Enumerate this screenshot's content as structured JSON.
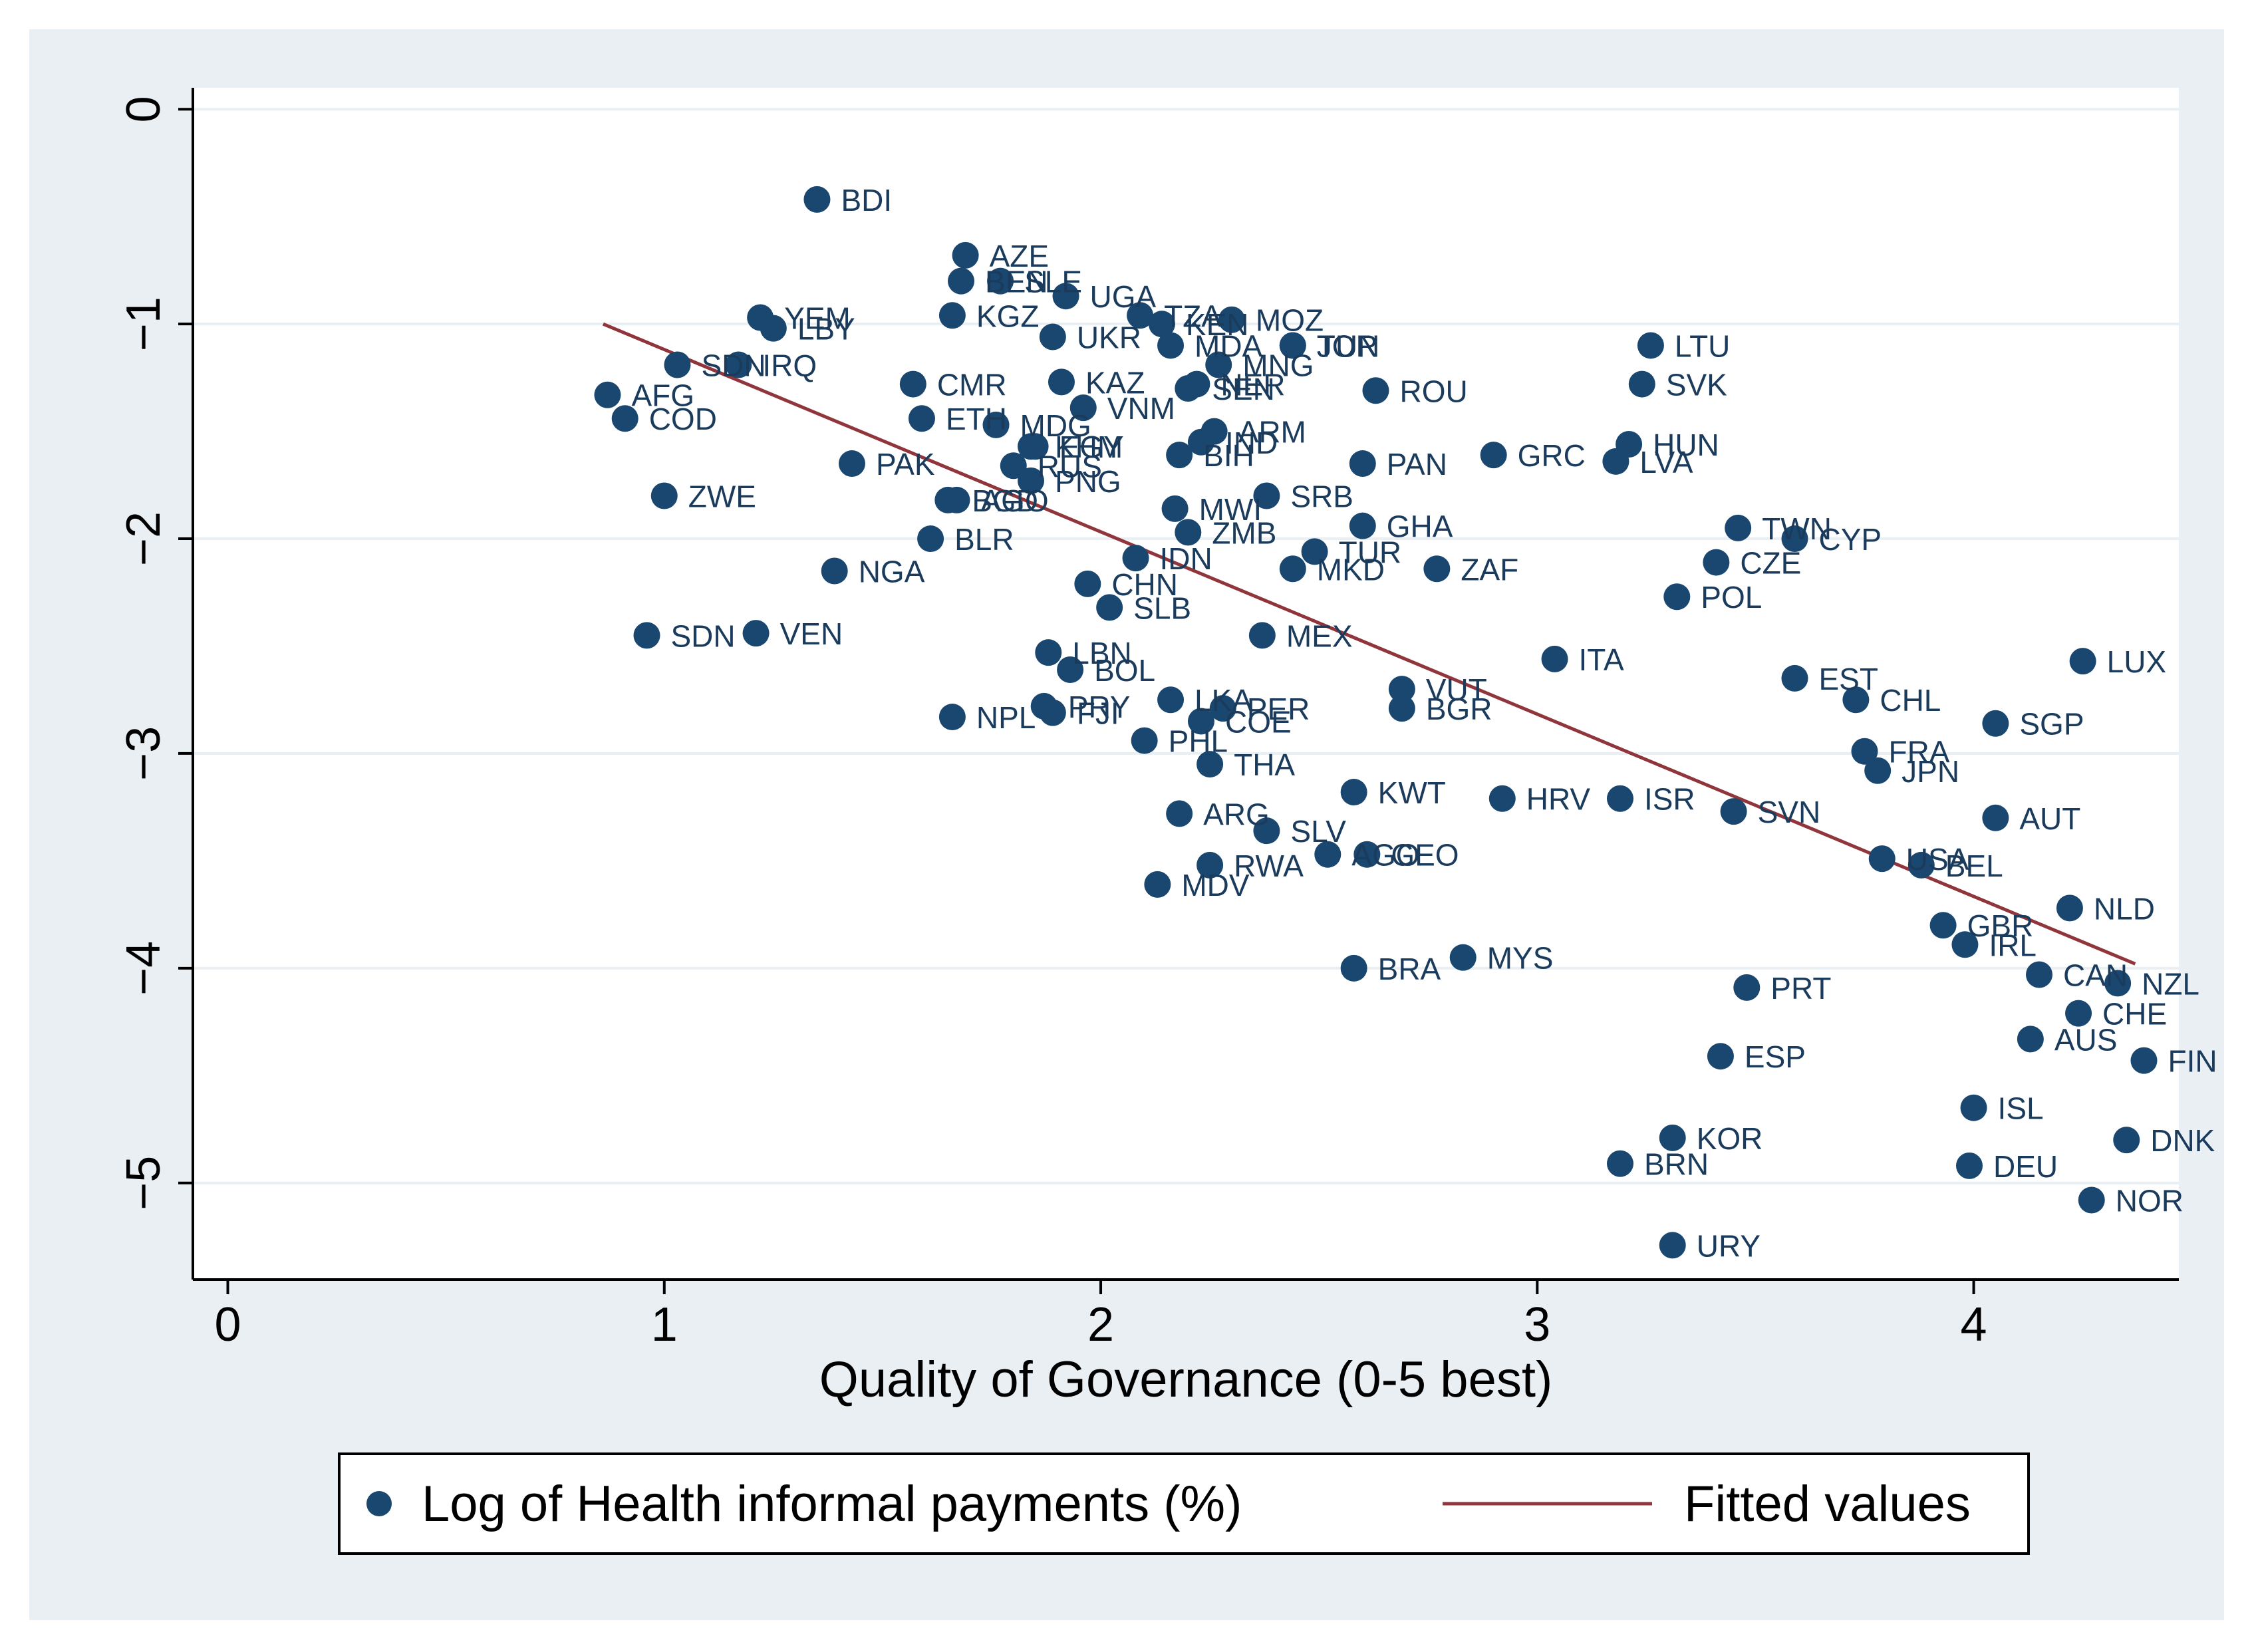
{
  "chart_data": {
    "type": "scatter",
    "xlabel": "Quality of Governance (0-5 best)",
    "ylabel": "",
    "xlim": [
      -0.08,
      4.47
    ],
    "ylim": [
      -5.45,
      0.1
    ],
    "xticks": [
      0,
      1,
      2,
      3,
      4
    ],
    "yticks": [
      0,
      -1,
      -2,
      -3,
      -4,
      -5
    ],
    "grid": true,
    "legend_position": "bottom",
    "colors": {
      "points": "#1a476f",
      "fit": "#90353b",
      "plot_bg": "#ffffff",
      "outer_bg": "#e9eff2",
      "grid": "#e9eff2"
    },
    "series": [
      {
        "name": "Log of Health informal payments (%)",
        "type": "scatter",
        "points": [
          {
            "label": "BDI",
            "x": 1.35,
            "y": -0.42
          },
          {
            "label": "AZE",
            "x": 1.69,
            "y": -0.68
          },
          {
            "label": "BEN",
            "x": 1.68,
            "y": -0.8
          },
          {
            "label": "SLE",
            "x": 1.77,
            "y": -0.8
          },
          {
            "label": "UGA",
            "x": 1.92,
            "y": -0.87
          },
          {
            "label": "KGZ",
            "x": 1.66,
            "y": -0.96
          },
          {
            "label": "TZA",
            "x": 2.09,
            "y": -0.96
          },
          {
            "label": "KEN",
            "x": 2.14,
            "y": -1.0
          },
          {
            "label": "MOZ",
            "x": 2.3,
            "y": -0.98
          },
          {
            "label": "TUN",
            "x": 2.44,
            "y": -1.1
          },
          {
            "label": "YEM",
            "x": 1.22,
            "y": -0.97
          },
          {
            "label": "LBY",
            "x": 1.25,
            "y": -1.02
          },
          {
            "label": "UKR",
            "x": 1.89,
            "y": -1.06
          },
          {
            "label": "MDA",
            "x": 2.16,
            "y": -1.1
          },
          {
            "label": "JOR",
            "x": 2.44,
            "y": -1.1
          },
          {
            "label": "LTU",
            "x": 3.26,
            "y": -1.1
          },
          {
            "label": "SDN",
            "x": 1.03,
            "y": -1.19
          },
          {
            "label": "IRQ",
            "x": 1.17,
            "y": -1.19
          },
          {
            "label": "MNG",
            "x": 2.27,
            "y": -1.19
          },
          {
            "label": "AFG",
            "x": 0.87,
            "y": -1.33
          },
          {
            "label": "COD",
            "x": 0.91,
            "y": -1.44
          },
          {
            "label": "CMR",
            "x": 1.57,
            "y": -1.28
          },
          {
            "label": "KAZ",
            "x": 1.91,
            "y": -1.27
          },
          {
            "label": "SEN",
            "x": 2.2,
            "y": -1.3
          },
          {
            "label": "NER",
            "x": 2.22,
            "y": -1.28
          },
          {
            "label": "ROU",
            "x": 2.63,
            "y": -1.31
          },
          {
            "label": "SVK",
            "x": 3.24,
            "y": -1.28
          },
          {
            "label": "VNM",
            "x": 1.96,
            "y": -1.39
          },
          {
            "label": "ETH",
            "x": 1.59,
            "y": -1.44
          },
          {
            "label": "MDG",
            "x": 1.76,
            "y": -1.47
          },
          {
            "label": "ARM",
            "x": 2.26,
            "y": -1.5
          },
          {
            "label": "IND",
            "x": 2.23,
            "y": -1.55
          },
          {
            "label": "KHM",
            "x": 1.84,
            "y": -1.57
          },
          {
            "label": "EGY",
            "x": 1.85,
            "y": -1.57
          },
          {
            "label": "HUN",
            "x": 3.21,
            "y": -1.56
          },
          {
            "label": "PAK",
            "x": 1.43,
            "y": -1.65
          },
          {
            "label": "RUS",
            "x": 1.8,
            "y": -1.66
          },
          {
            "label": "BIH",
            "x": 2.18,
            "y": -1.61
          },
          {
            "label": "GRC",
            "x": 2.9,
            "y": -1.61
          },
          {
            "label": "LVA",
            "x": 3.18,
            "y": -1.64
          },
          {
            "label": "PAN",
            "x": 2.6,
            "y": -1.65
          },
          {
            "label": "PNG",
            "x": 1.84,
            "y": -1.73
          },
          {
            "label": "ZWE",
            "x": 1.0,
            "y": -1.8
          },
          {
            "label": "BGD",
            "x": 1.65,
            "y": -1.82
          },
          {
            "label": "AGO",
            "x": 1.67,
            "y": -1.82
          },
          {
            "label": "SRB",
            "x": 2.38,
            "y": -1.8
          },
          {
            "label": "MWI",
            "x": 2.17,
            "y": -1.86
          },
          {
            "label": "ZMB",
            "x": 2.2,
            "y": -1.97
          },
          {
            "label": "GHA",
            "x": 2.6,
            "y": -1.94
          },
          {
            "label": "TWN",
            "x": 3.46,
            "y": -1.95
          },
          {
            "label": "CYP",
            "x": 3.59,
            "y": -2.0
          },
          {
            "label": "BLR",
            "x": 1.61,
            "y": -2.0
          },
          {
            "label": "IDN",
            "x": 2.08,
            "y": -2.09
          },
          {
            "label": "TUR",
            "x": 2.49,
            "y": -2.06
          },
          {
            "label": "NGA",
            "x": 1.39,
            "y": -2.15
          },
          {
            "label": "MKD",
            "x": 2.44,
            "y": -2.14
          },
          {
            "label": "ZAF",
            "x": 2.77,
            "y": -2.14
          },
          {
            "label": "CZE",
            "x": 3.41,
            "y": -2.11
          },
          {
            "label": "CHN",
            "x": 1.97,
            "y": -2.21
          },
          {
            "label": "POL",
            "x": 3.32,
            "y": -2.27
          },
          {
            "label": "SLB",
            "x": 2.02,
            "y": -2.32
          },
          {
            "label": "SDN",
            "x": 0.96,
            "y": -2.45
          },
          {
            "label": "VEN",
            "x": 1.21,
            "y": -2.44
          },
          {
            "label": "MEX",
            "x": 2.37,
            "y": -2.45
          },
          {
            "label": "LBN",
            "x": 1.88,
            "y": -2.53
          },
          {
            "label": "ITA",
            "x": 3.04,
            "y": -2.56
          },
          {
            "label": "BOL",
            "x": 1.93,
            "y": -2.61
          },
          {
            "label": "LUX",
            "x": 4.25,
            "y": -2.57
          },
          {
            "label": "EST",
            "x": 3.59,
            "y": -2.65
          },
          {
            "label": "VUT",
            "x": 2.69,
            "y": -2.7
          },
          {
            "label": "CHL",
            "x": 3.73,
            "y": -2.75
          },
          {
            "label": "LKA",
            "x": 2.16,
            "y": -2.75
          },
          {
            "label": "PER",
            "x": 2.28,
            "y": -2.79
          },
          {
            "label": "BGR",
            "x": 2.69,
            "y": -2.79
          },
          {
            "label": "PRY",
            "x": 1.87,
            "y": -2.78
          },
          {
            "label": "FJI",
            "x": 1.89,
            "y": -2.81
          },
          {
            "label": "NPL",
            "x": 1.66,
            "y": -2.83
          },
          {
            "label": "COE",
            "x": 2.23,
            "y": -2.85
          },
          {
            "label": "SGP",
            "x": 4.05,
            "y": -2.86
          },
          {
            "label": "PHL",
            "x": 2.1,
            "y": -2.94
          },
          {
            "label": "FRA",
            "x": 3.75,
            "y": -2.99
          },
          {
            "label": "THA",
            "x": 2.25,
            "y": -3.05
          },
          {
            "label": "JPN",
            "x": 3.78,
            "y": -3.08
          },
          {
            "label": "KWT",
            "x": 2.58,
            "y": -3.18
          },
          {
            "label": "HRV",
            "x": 2.92,
            "y": -3.21
          },
          {
            "label": "ISR",
            "x": 3.19,
            "y": -3.21
          },
          {
            "label": "SVN",
            "x": 3.45,
            "y": -3.27
          },
          {
            "label": "ARG",
            "x": 2.18,
            "y": -3.28
          },
          {
            "label": "AUT",
            "x": 4.05,
            "y": -3.3
          },
          {
            "label": "SLV",
            "x": 2.38,
            "y": -3.36
          },
          {
            "label": "AGO",
            "x": 2.52,
            "y": -3.47
          },
          {
            "label": "GEO",
            "x": 2.61,
            "y": -3.47
          },
          {
            "label": "USA",
            "x": 3.79,
            "y": -3.49
          },
          {
            "label": "BEL",
            "x": 3.88,
            "y": -3.52
          },
          {
            "label": "RWA",
            "x": 2.25,
            "y": -3.52
          },
          {
            "label": "MDV",
            "x": 2.13,
            "y": -3.61
          },
          {
            "label": "NLD",
            "x": 4.22,
            "y": -3.72
          },
          {
            "label": "GBR",
            "x": 3.93,
            "y": -3.8
          },
          {
            "label": "IRL",
            "x": 3.98,
            "y": -3.89
          },
          {
            "label": "BRA",
            "x": 2.58,
            "y": -4.0
          },
          {
            "label": "MYS",
            "x": 2.83,
            "y": -3.95
          },
          {
            "label": "CAN",
            "x": 4.15,
            "y": -4.03
          },
          {
            "label": "NZL",
            "x": 4.33,
            "y": -4.07
          },
          {
            "label": "PRT",
            "x": 3.48,
            "y": -4.09
          },
          {
            "label": "CHE",
            "x": 4.24,
            "y": -4.21
          },
          {
            "label": "AUS",
            "x": 4.13,
            "y": -4.33
          },
          {
            "label": "ESP",
            "x": 3.42,
            "y": -4.41
          },
          {
            "label": "FIN",
            "x": 4.39,
            "y": -4.43
          },
          {
            "label": "ISL",
            "x": 4.0,
            "y": -4.65
          },
          {
            "label": "KOR",
            "x": 3.31,
            "y": -4.79
          },
          {
            "label": "DNK",
            "x": 4.35,
            "y": -4.8
          },
          {
            "label": "BRN",
            "x": 3.19,
            "y": -4.91
          },
          {
            "label": "DEU",
            "x": 3.99,
            "y": -4.92
          },
          {
            "label": "NOR",
            "x": 4.27,
            "y": -5.08
          },
          {
            "label": "URY",
            "x": 3.31,
            "y": -5.29
          }
        ]
      },
      {
        "name": "Fitted values",
        "type": "line",
        "x": [
          0.86,
          4.37
        ],
        "y": [
          -1.0,
          -3.98
        ]
      }
    ]
  }
}
